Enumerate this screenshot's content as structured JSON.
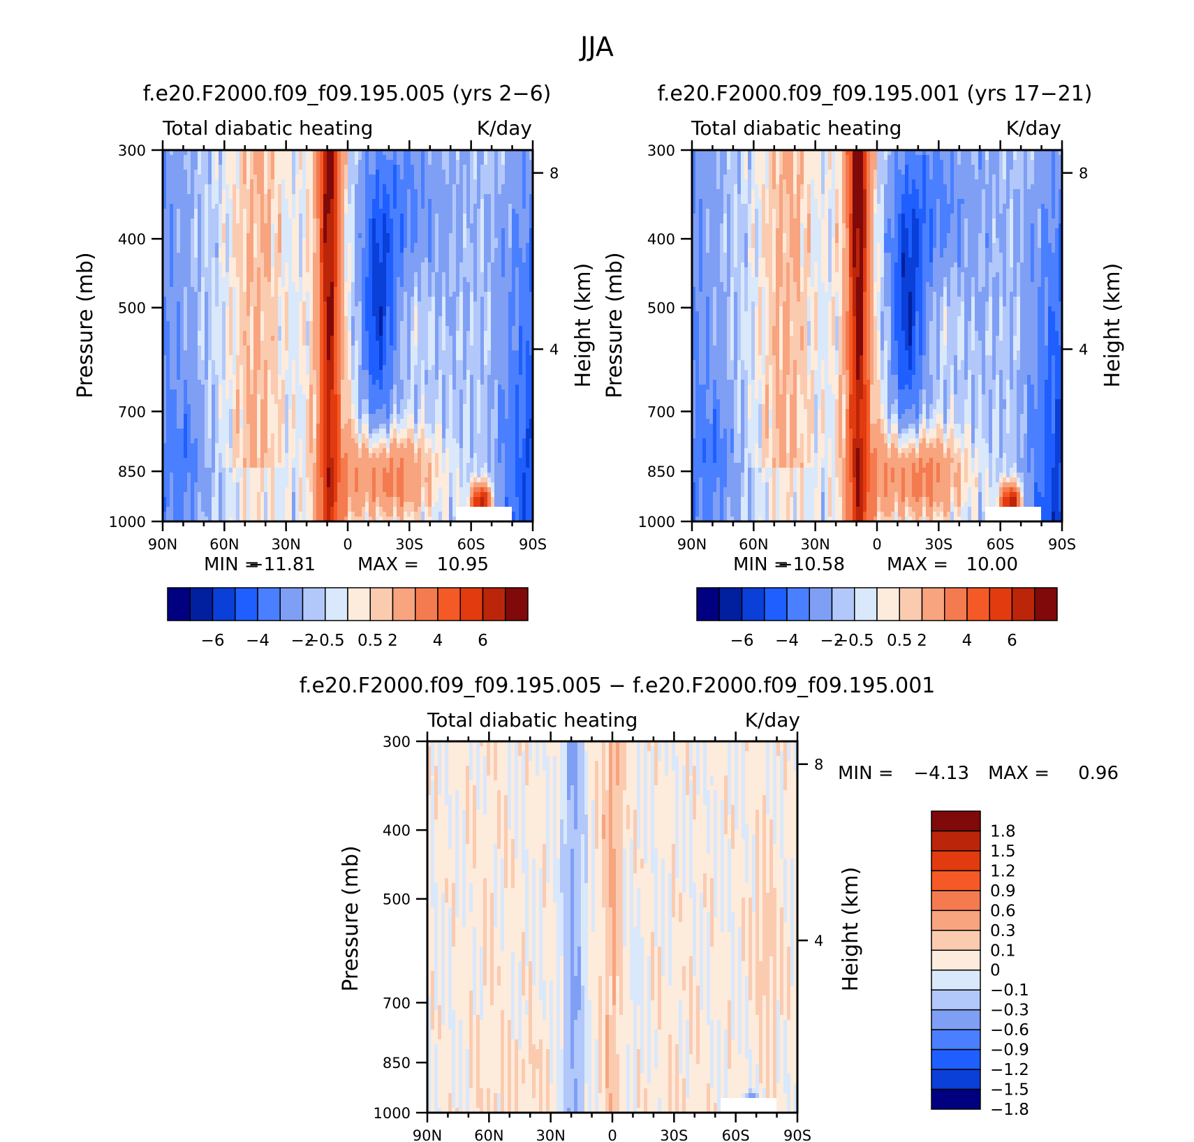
{
  "figure": {
    "title": "JJA"
  },
  "colors": {
    "main_scale": [
      "#000080",
      "#0020a0",
      "#0a3fd8",
      "#1f5fff",
      "#4a7fff",
      "#7f9ff5",
      "#b2c8fa",
      "#d9e8fb",
      "#fdebdc",
      "#fbcbb0",
      "#f7a47f",
      "#f47b4f",
      "#f55a26",
      "#e23b0f",
      "#bb2509",
      "#80090a"
    ],
    "diff_scale": [
      "#000080",
      "#0a3fd8",
      "#1f5fff",
      "#4a7fff",
      "#7f9ff5",
      "#b2c8fa",
      "#d9e8fb",
      "#fdebdc",
      "#fbcbb0",
      "#f7a47f",
      "#f47b4f",
      "#f55a26",
      "#e23b0f",
      "#bb2509",
      "#80090a"
    ]
  },
  "chart_data": [
    {
      "type": "heatmap",
      "title": "f.e20.F2000.f09_f09.195.005 (yrs 2−6)",
      "left_label": "Total diabatic heating",
      "right_label": "K/day",
      "ylabel": "Pressure (mb)",
      "ylabel_right": "Height (km)",
      "x_ticklabels": [
        "90N",
        "60N",
        "30N",
        "0",
        "30S",
        "60S",
        "90S"
      ],
      "y_ticklabels": [
        "300",
        "400",
        "500",
        "700",
        "850",
        "1000"
      ],
      "y_right_ticklabels": [
        "8",
        "4"
      ],
      "stats": {
        "min_label": "MIN =",
        "min": "−11.81",
        "max_label": "MAX =",
        "max": "10.95"
      },
      "colorbar": {
        "orientation": "horizontal",
        "tick_labels": [
          "−6",
          "−4",
          "−2",
          "−0.5",
          "0.5",
          "2",
          "4",
          "6"
        ]
      },
      "field_extremes": {
        "min": -11.81,
        "max": 10.95
      },
      "ylim": [
        1000,
        300
      ],
      "xlim": [
        "90N",
        "90S"
      ]
    },
    {
      "type": "heatmap",
      "title": "f.e20.F2000.f09_f09.195.001 (yrs 17−21)",
      "left_label": "Total diabatic heating",
      "right_label": "K/day",
      "ylabel": "Pressure (mb)",
      "ylabel_right": "Height (km)",
      "x_ticklabels": [
        "90N",
        "60N",
        "30N",
        "0",
        "30S",
        "60S",
        "90S"
      ],
      "y_ticklabels": [
        "300",
        "400",
        "500",
        "700",
        "850",
        "1000"
      ],
      "y_right_ticklabels": [
        "8",
        "4"
      ],
      "stats": {
        "min_label": "MIN =",
        "min": "−10.58",
        "max_label": "MAX =",
        "max": "10.00"
      },
      "colorbar": {
        "orientation": "horizontal",
        "tick_labels": [
          "−6",
          "−4",
          "−2",
          "−0.5",
          "0.5",
          "2",
          "4",
          "6"
        ]
      },
      "field_extremes": {
        "min": -10.58,
        "max": 10.0
      },
      "ylim": [
        1000,
        300
      ],
      "xlim": [
        "90N",
        "90S"
      ]
    },
    {
      "type": "heatmap",
      "title": "f.e20.F2000.f09_f09.195.005 − f.e20.F2000.f09_f09.195.001",
      "left_label": "Total diabatic heating",
      "right_label": "K/day",
      "ylabel": "Pressure (mb)",
      "ylabel_right": "Height (km)",
      "x_ticklabels": [
        "90N",
        "60N",
        "30N",
        "0",
        "30S",
        "60S",
        "90S"
      ],
      "y_ticklabels": [
        "300",
        "400",
        "500",
        "700",
        "850",
        "1000"
      ],
      "y_right_ticklabels": [
        "8",
        "4"
      ],
      "stats": {
        "min_label": "MIN =",
        "min": "−4.13",
        "max_label": "MAX =",
        "max": "0.96"
      },
      "colorbar": {
        "orientation": "vertical",
        "tick_labels": [
          "1.8",
          "1.5",
          "1.2",
          "0.9",
          "0.6",
          "0.3",
          "0.1",
          "0",
          "−0.1",
          "−0.3",
          "−0.6",
          "−0.9",
          "−1.2",
          "−1.5",
          "−1.8"
        ]
      },
      "field_extremes": {
        "min": -4.13,
        "max": 0.96
      },
      "ylim": [
        1000,
        300
      ],
      "xlim": [
        "90N",
        "90S"
      ]
    }
  ]
}
